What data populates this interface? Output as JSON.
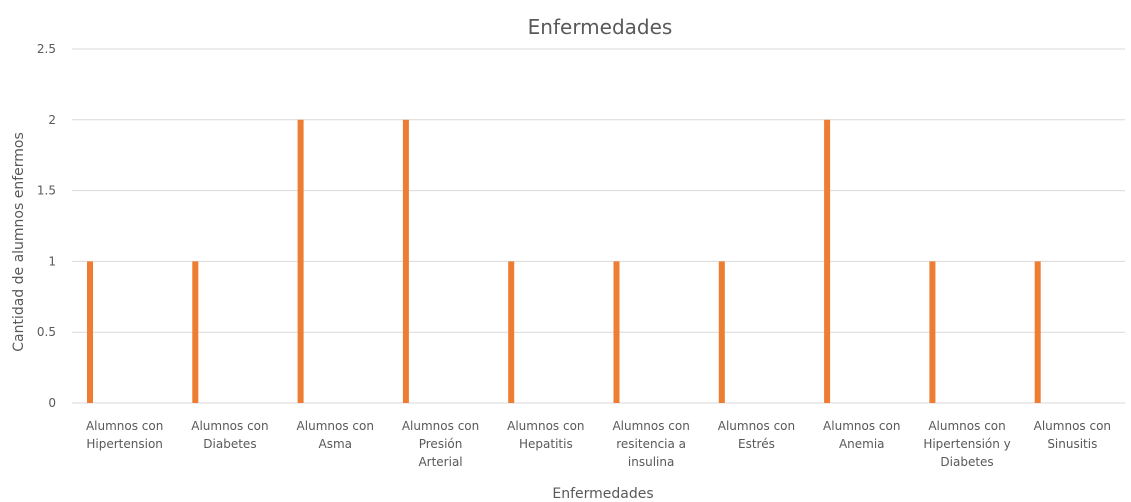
{
  "chart_data": {
    "type": "bar",
    "title": "Enfermedades",
    "xlabel": "Enfermedades",
    "ylabel": "Cantidad de alumnos enfermos",
    "ylim": [
      0,
      2.5
    ],
    "yticks": [
      "0",
      "0.5",
      "1",
      "1.5",
      "2",
      "2.5"
    ],
    "ytick_values": [
      0,
      0.5,
      1,
      1.5,
      2,
      2.5
    ],
    "grid": true,
    "legend": "none",
    "bar_color": "#ED7D31",
    "categories": [
      [
        "Alumnos con",
        "Hipertension"
      ],
      [
        "Alumnos con",
        "Diabetes"
      ],
      [
        "Alumnos con",
        "Asma"
      ],
      [
        "Alumnos con",
        "Presión",
        "Arterial"
      ],
      [
        "Alumnos con",
        "Hepatitis"
      ],
      [
        "Alumnos con",
        "resitencia a",
        "insulina"
      ],
      [
        "Alumnos con",
        "Estrés"
      ],
      [
        "Alumnos con",
        "Anemia"
      ],
      [
        "Alumnos con",
        "Hipertensión y",
        "Diabetes"
      ],
      [
        "Alumnos con",
        "Sinusitis"
      ]
    ],
    "values": [
      1,
      1,
      2,
      2,
      1,
      1,
      1,
      2,
      1,
      1
    ]
  }
}
